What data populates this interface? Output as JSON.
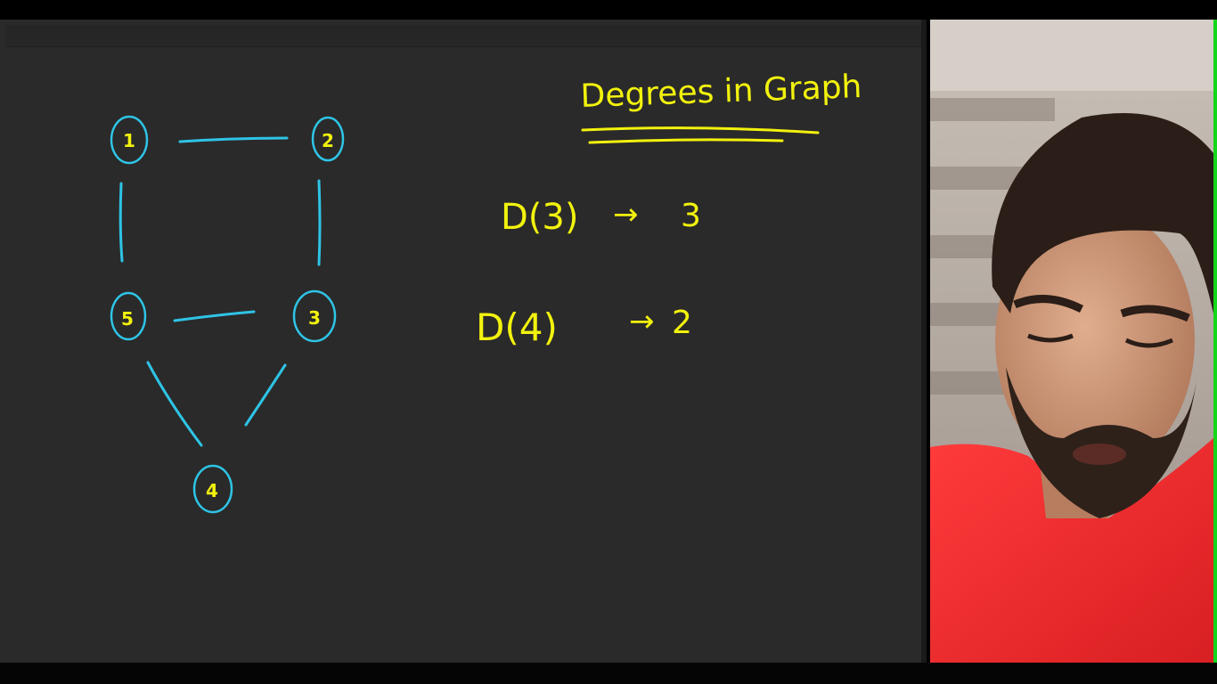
{
  "whiteboard": {
    "title": "Degrees in Graph",
    "graph": {
      "nodes": [
        {
          "id": "1",
          "label": "1"
        },
        {
          "id": "2",
          "label": "2"
        },
        {
          "id": "5",
          "label": "5"
        },
        {
          "id": "3",
          "label": "3"
        },
        {
          "id": "4",
          "label": "4"
        }
      ],
      "edges": [
        [
          "1",
          "2"
        ],
        [
          "1",
          "5"
        ],
        [
          "2",
          "3"
        ],
        [
          "5",
          "3"
        ],
        [
          "5",
          "4"
        ],
        [
          "3",
          "4"
        ]
      ]
    },
    "equations": [
      {
        "lhs": "D(3)",
        "arrow": "→",
        "rhs": "3"
      },
      {
        "lhs": "D(4)",
        "arrow": "→",
        "rhs": "2"
      }
    ]
  },
  "colors": {
    "board_bg": "#2a2a2a",
    "graph_ink": "#2ec4e6",
    "text_ink": "#f2f20e",
    "cam_edge": "#12d61a"
  }
}
